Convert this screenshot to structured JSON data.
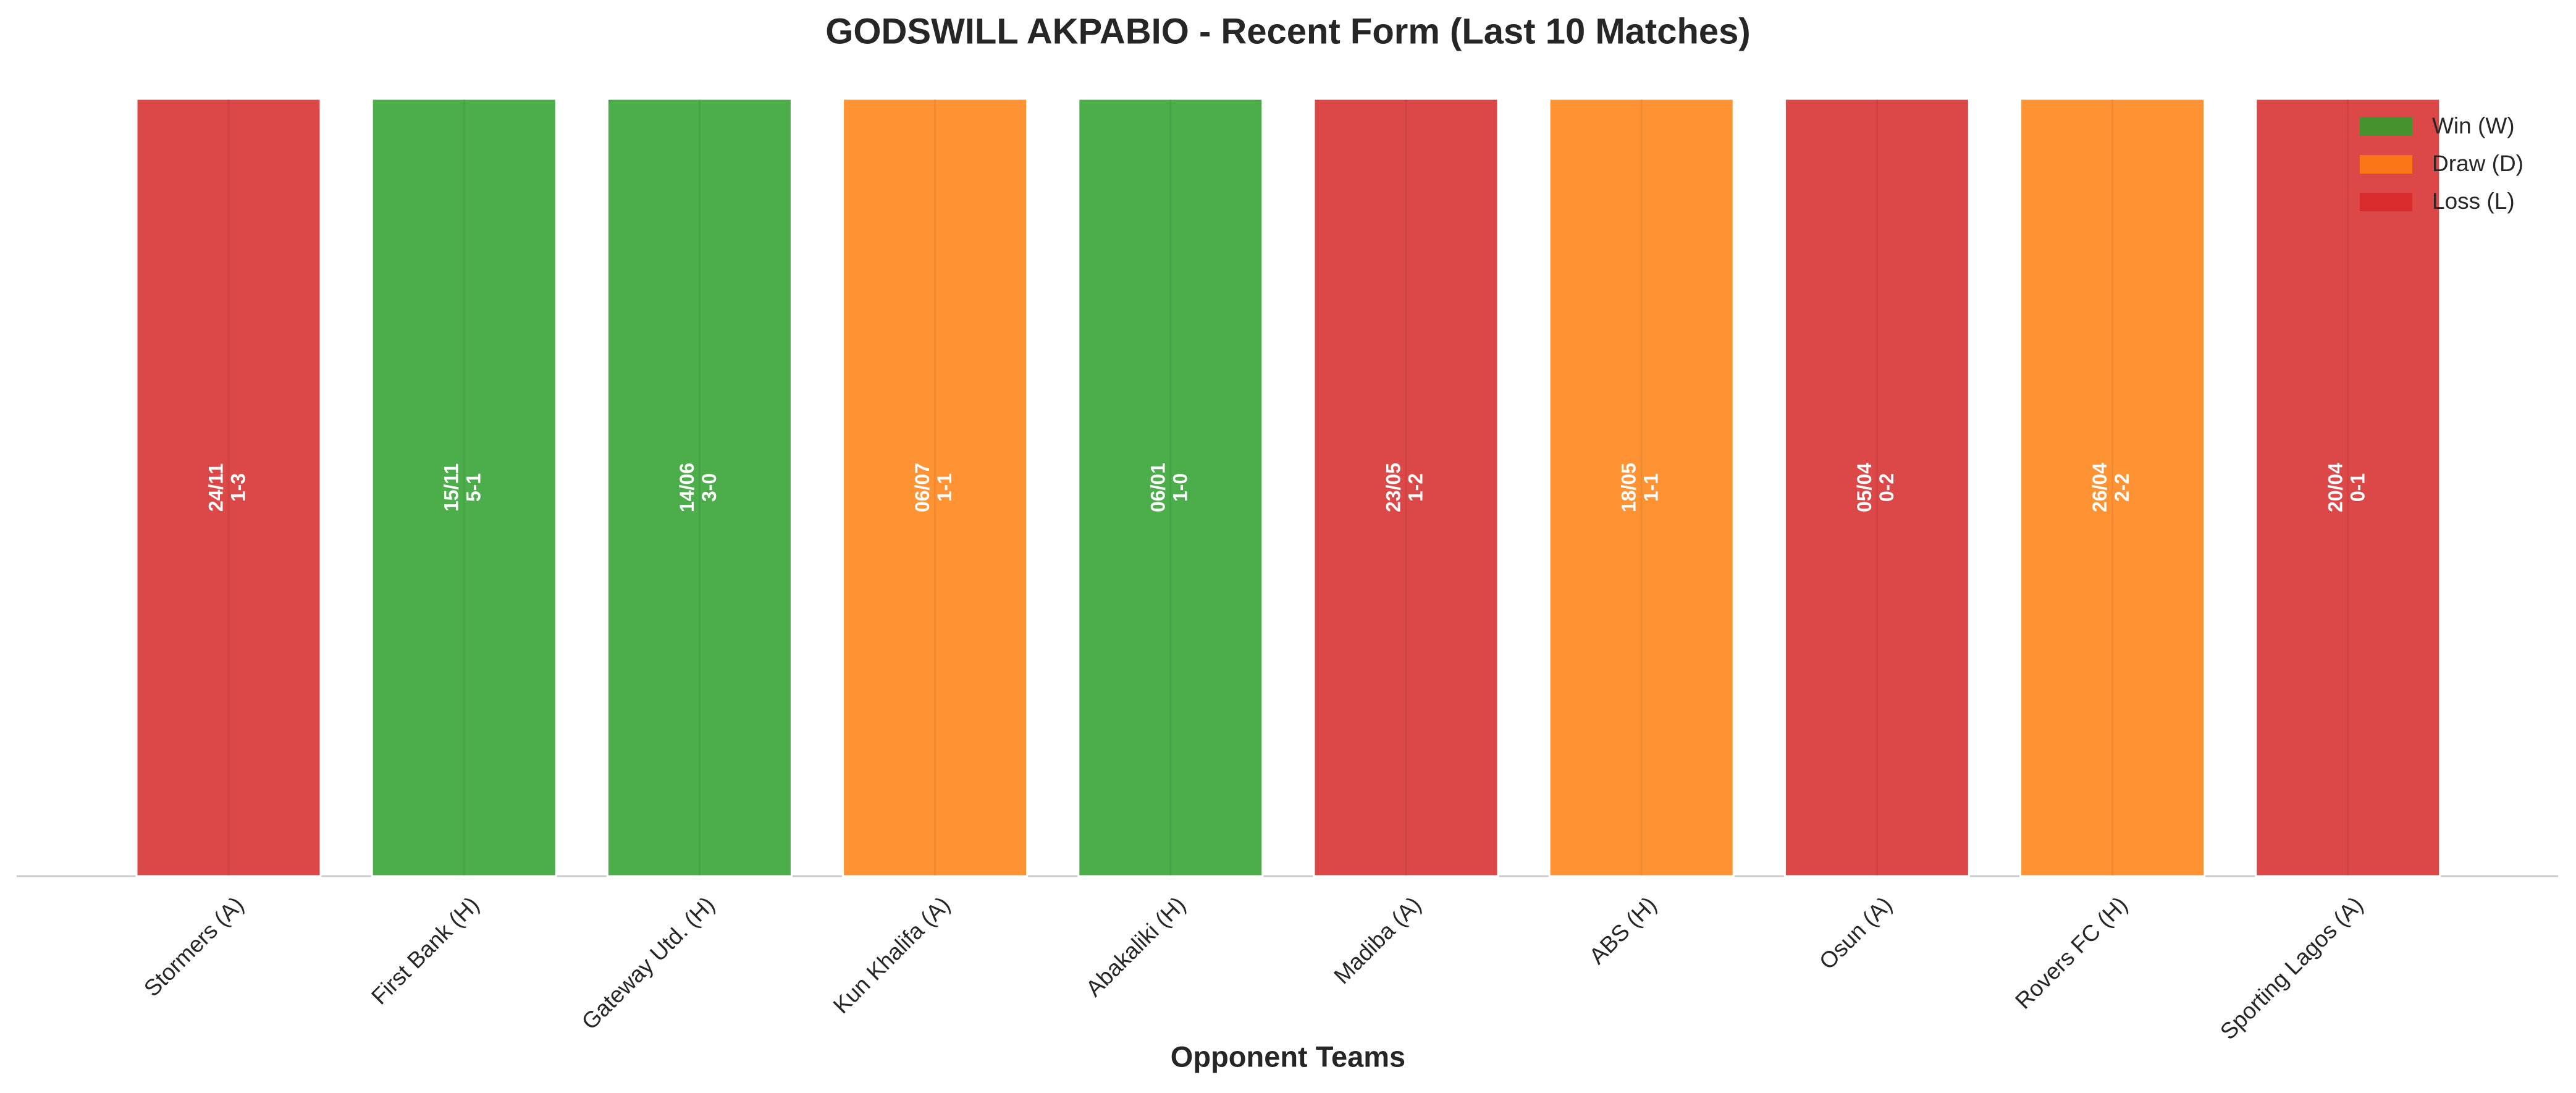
{
  "chart_data": {
    "type": "bar",
    "title": "GODSWILL AKPABIO - Recent Form (Last 10 Matches)",
    "x_label": "Opponent Teams",
    "categories": [
      "Stormers (A)",
      "First Bank (H)",
      "Gateway Utd. (H)",
      "Kun Khalifa (A)",
      "Abakaliki (H)",
      "Madiba (A)",
      "ABS (H)",
      "Osun (A)",
      "Rovers FC (H)",
      "Sporting Lagos (A)"
    ],
    "values": [
      1,
      1,
      1,
      1,
      1,
      1,
      1,
      1,
      1,
      1
    ],
    "dates": [
      "24/11",
      "15/11",
      "14/06",
      "06/07",
      "06/01",
      "23/05",
      "18/05",
      "05/04",
      "26/04",
      "20/04"
    ],
    "scores": [
      "1-3",
      "5-1",
      "3-0",
      "1-1",
      "1-0",
      "1-2",
      "1-1",
      "0-2",
      "2-2",
      "0-1"
    ],
    "colors": [
      "#d62728",
      "#2ca02c",
      "#2ca02c",
      "#ff7f0e",
      "#2ca02c",
      "#d62728",
      "#ff7f0e",
      "#d62728",
      "#ff7f0e",
      "#d62728"
    ],
    "ylim": [
      0,
      1
    ],
    "legend_position": "upper right",
    "legend": [
      {
        "name": "Win (W)",
        "color": "#2ca02c"
      },
      {
        "name": "Draw (D)",
        "color": "#ff7f0e"
      },
      {
        "name": "Loss (L)",
        "color": "#d62728"
      }
    ]
  }
}
